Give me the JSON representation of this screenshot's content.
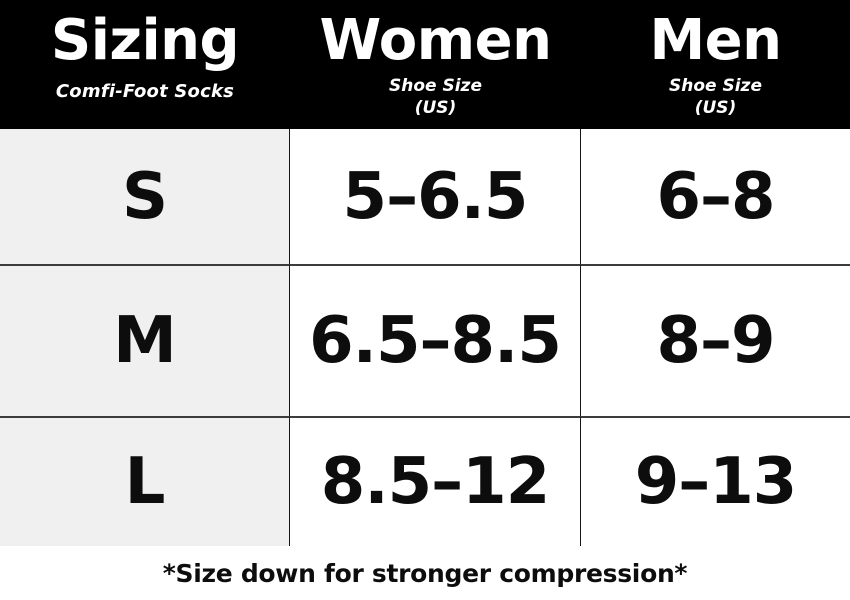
{
  "table": {
    "header": {
      "sizing": {
        "title": "Sizing",
        "subtitle": "Comfi-Foot Socks"
      },
      "women": {
        "title": "Women",
        "subtitle_line1": "Shoe Size",
        "subtitle_line2": "(US)"
      },
      "men": {
        "title": "Men",
        "subtitle_line1": "Shoe Size",
        "subtitle_line2": "(US)"
      }
    },
    "rows": [
      {
        "size": "S",
        "women": "5–6.5",
        "men": "6–8"
      },
      {
        "size": "M",
        "women": "6.5–8.5",
        "men": "8–9"
      },
      {
        "size": "L",
        "women": "8.5–12",
        "men": "9–13"
      }
    ]
  },
  "footer": {
    "note": "*Size down for stronger compression*"
  },
  "colors": {
    "header_bg": "#000000",
    "header_text": "#ffffff",
    "size_column_bg": "#f0f0f0",
    "cell_bg": "#ffffff",
    "value_text": "#0d0d0d",
    "row_border": "#3c3c3c",
    "column_border": "#161616"
  },
  "chart_data": {
    "type": "table",
    "title": "Sizing",
    "subtitle": "Comfi-Foot Socks",
    "columns": [
      "Sizing (Comfi-Foot Socks)",
      "Women Shoe Size (US)",
      "Men Shoe Size (US)"
    ],
    "rows": [
      [
        "S",
        "5–6.5",
        "6–8"
      ],
      [
        "M",
        "6.5–8.5",
        "8–9"
      ],
      [
        "L",
        "8.5–12",
        "9–13"
      ]
    ],
    "annotations": [
      "*Size down for stronger compression*"
    ],
    "layout": {
      "first_column_shaded": true,
      "header_background": "black",
      "grid": "thin black inner borders"
    }
  }
}
